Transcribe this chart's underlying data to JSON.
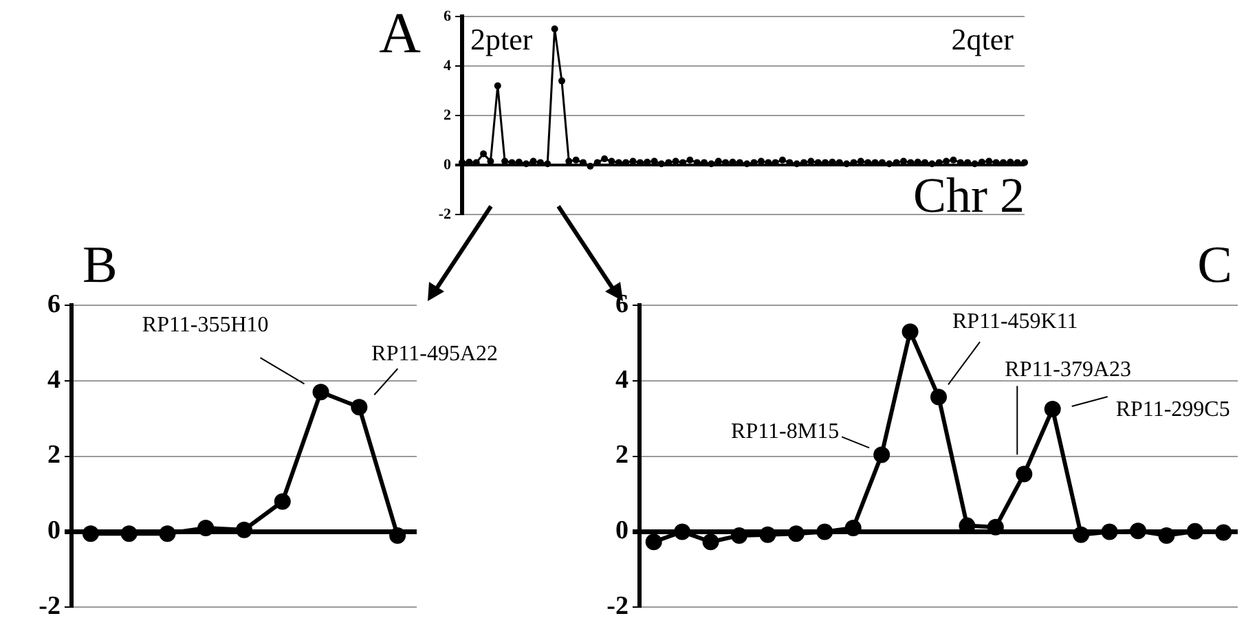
{
  "chart_data": [
    {
      "type": "line",
      "title": "A",
      "annotations": [
        "2pter",
        "2qter",
        "Chr 2"
      ],
      "categories": [
        null,
        null,
        null,
        null,
        null,
        null,
        null,
        null,
        null,
        null,
        null,
        null,
        null,
        null,
        null,
        null,
        null,
        null,
        null,
        null,
        null,
        null,
        null,
        null,
        null,
        null,
        null,
        null,
        null,
        null,
        null,
        null,
        null,
        null,
        null,
        null,
        null,
        null,
        null,
        null,
        null,
        null,
        null,
        null,
        null,
        null,
        null,
        null,
        null,
        null,
        null,
        null,
        null,
        null,
        null,
        null,
        null,
        null,
        null,
        null,
        null,
        null,
        null,
        null,
        null,
        null,
        null,
        null,
        null,
        null,
        null,
        null,
        null,
        null,
        null,
        null,
        null,
        null,
        null,
        null
      ],
      "series": [
        {
          "color": "#000000",
          "values": [
            0.1,
            0.12,
            0.1,
            0.45,
            0.15,
            3.2,
            0.15,
            0.1,
            0.12,
            0.05,
            0.15,
            0.1,
            0.05,
            5.5,
            3.4,
            0.15,
            0.2,
            0.1,
            -0.05,
            0.1,
            0.25,
            0.15,
            0.1,
            0.1,
            0.15,
            0.1,
            0.12,
            0.15,
            0.05,
            0.1,
            0.15,
            0.1,
            0.2,
            0.1,
            0.1,
            0.05,
            0.15,
            0.1,
            0.12,
            0.1,
            0.05,
            0.1,
            0.15,
            0.1,
            0.1,
            0.2,
            0.1,
            0.05,
            0.1,
            0.15,
            0.1,
            0.1,
            0.12,
            0.1,
            0.05,
            0.1,
            0.15,
            0.1,
            0.1,
            0.1,
            0.05,
            0.1,
            0.15,
            0.1,
            0.12,
            0.1,
            0.05,
            0.1,
            0.15,
            0.2,
            0.1,
            0.1,
            0.05,
            0.12,
            0.15,
            0.1,
            0.1,
            0.12,
            0.1,
            0.1
          ]
        }
      ],
      "ylim": [
        -2,
        6
      ],
      "yticks": [
        -2,
        0,
        2,
        4,
        6
      ],
      "grid": "y",
      "tick_labels": "y",
      "marker": "circle",
      "legend": false
    },
    {
      "type": "line",
      "title": "B",
      "categories": [
        null,
        null,
        null,
        null,
        null,
        null,
        null,
        null,
        null
      ],
      "series": [
        {
          "color": "#000000",
          "values": [
            -0.05,
            -0.05,
            -0.05,
            0.1,
            0.05,
            0.8,
            3.7,
            3.3,
            -0.1
          ],
          "value_labels": [
            null,
            null,
            null,
            null,
            null,
            null,
            "RP11-355H10",
            "RP11-495A22",
            null
          ]
        }
      ],
      "ylim": [
        -2,
        6
      ],
      "yticks": [
        -2,
        0,
        2,
        4,
        6
      ],
      "grid": "y",
      "tick_labels": "y",
      "marker": "circle",
      "legend": false
    },
    {
      "type": "line",
      "title": "C",
      "categories": [
        null,
        null,
        null,
        null,
        null,
        null,
        null,
        null,
        null,
        null,
        null,
        null,
        null,
        null,
        null,
        null,
        null,
        null,
        null,
        null,
        null
      ],
      "series": [
        {
          "color": "#000000",
          "values": [
            -0.27,
            0,
            -0.27,
            -0.1,
            -0.08,
            -0.05,
            0,
            0.1,
            2.04,
            5.3,
            3.57,
            0.16,
            0.12,
            1.53,
            3.25,
            -0.08,
            0,
            0.02,
            -0.1,
            0.01,
            -0.02
          ],
          "value_labels": [
            null,
            null,
            null,
            null,
            null,
            null,
            null,
            null,
            "RP11-8M15",
            null,
            "RP11-459K11",
            null,
            null,
            "RP11-379A23",
            "RP11-299C5",
            null,
            null,
            null,
            null,
            null,
            null
          ]
        }
      ],
      "ylim": [
        -2,
        6
      ],
      "yticks": [
        -2,
        0,
        2,
        4,
        6
      ],
      "grid": "y",
      "tick_labels": "y",
      "marker": "circle",
      "legend": false
    }
  ]
}
